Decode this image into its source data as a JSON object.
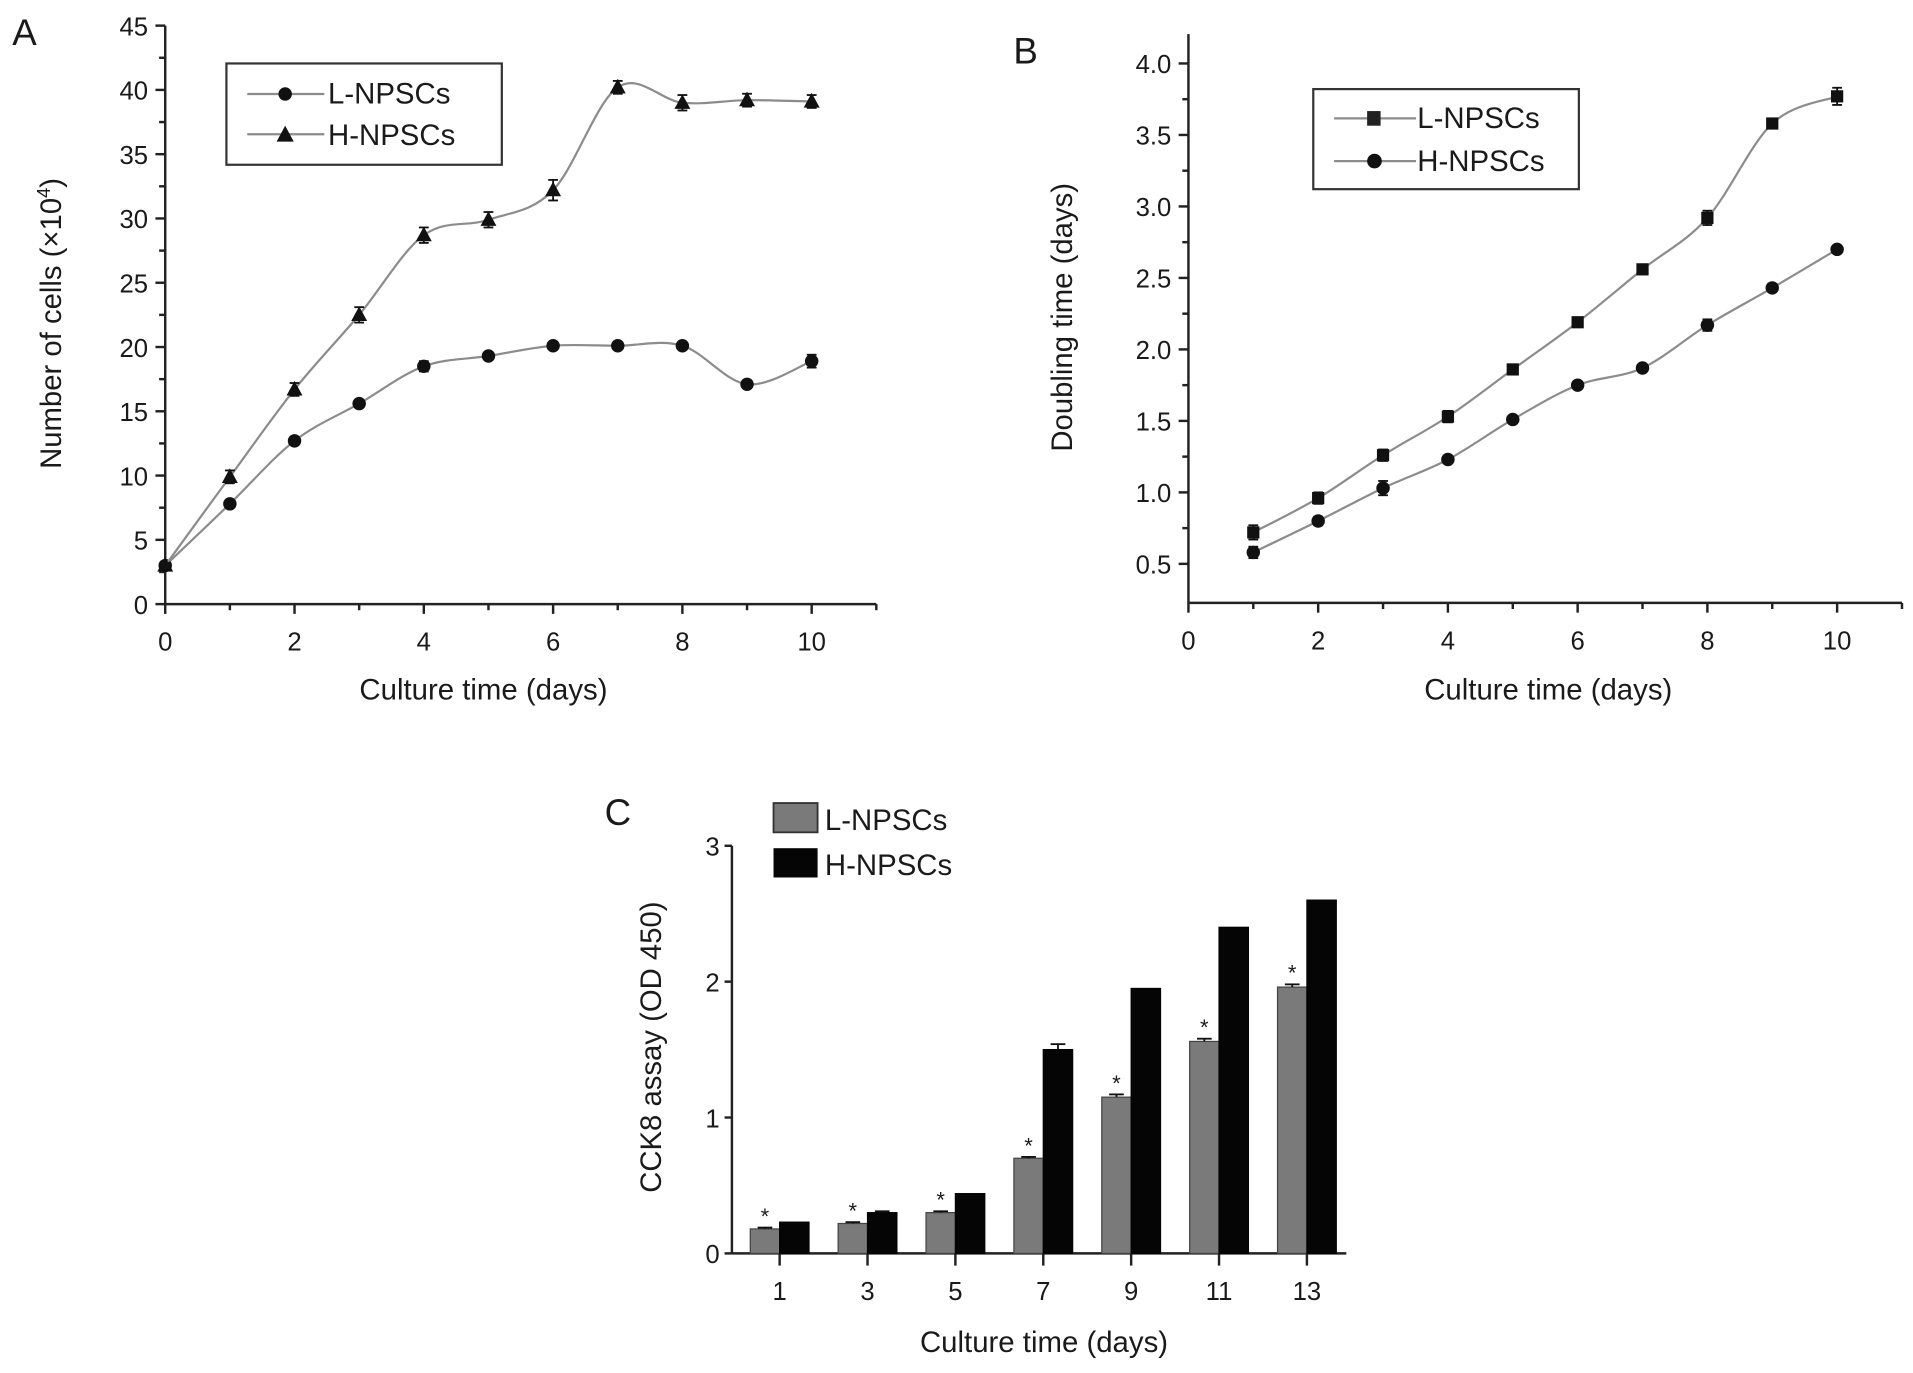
{
  "colors": {
    "line": "#8c8c8c",
    "marker": "#111111",
    "bar_l": "#7a7a7a",
    "bar_h": "#050505",
    "axis": "#222222"
  },
  "chart_data": [
    {
      "id": "A",
      "panel_label": "A",
      "type": "line",
      "xlabel": "Culture time (days)",
      "ylabel": "Number of cells (×10",
      "ylabel_sup": "4",
      "ylabel_close": ")",
      "xlim": [
        0,
        11
      ],
      "ylim": [
        0,
        45
      ],
      "xticks": [
        0,
        2,
        4,
        6,
        8,
        10
      ],
      "xtick_labels": [
        "0",
        "2",
        "4",
        "6",
        "8",
        "10"
      ],
      "yticks": [
        0,
        5,
        10,
        15,
        20,
        25,
        30,
        35,
        40,
        45
      ],
      "ytick_labels": [
        "0",
        "5",
        "10",
        "15",
        "20",
        "25",
        "30",
        "35",
        "40",
        "45"
      ],
      "legend_position": "top-left",
      "x": [
        0,
        1,
        2,
        3,
        4,
        5,
        6,
        7,
        8,
        9,
        10
      ],
      "series": [
        {
          "name": "L-NPSCs",
          "marker": "circle",
          "values": [
            3.0,
            7.8,
            12.7,
            15.6,
            18.5,
            19.3,
            20.1,
            20.1,
            20.1,
            17.1,
            18.9
          ],
          "errors": [
            0.2,
            0.2,
            0.3,
            0.2,
            0.4,
            0.2,
            0.2,
            0.2,
            0.2,
            0.2,
            0.5
          ]
        },
        {
          "name": "H-NPSCs",
          "marker": "triangle",
          "values": [
            3.0,
            9.9,
            16.7,
            22.5,
            28.7,
            29.9,
            32.2,
            40.2,
            39.0,
            39.2,
            39.1
          ],
          "errors": [
            0.2,
            0.5,
            0.5,
            0.6,
            0.6,
            0.6,
            0.8,
            0.5,
            0.6,
            0.5,
            0.5
          ]
        }
      ]
    },
    {
      "id": "B",
      "panel_label": "B",
      "type": "line",
      "xlabel": "Culture time (days)",
      "ylabel": "Doubling time (days)",
      "xlim": [
        0,
        11
      ],
      "ylim": [
        0.23,
        4.2
      ],
      "xticks": [
        0,
        2,
        4,
        6,
        8,
        10
      ],
      "xtick_labels": [
        "0",
        "2",
        "4",
        "6",
        "8",
        "10"
      ],
      "yticks": [
        0.5,
        1.0,
        1.5,
        2.0,
        2.5,
        3.0,
        3.5,
        4.0
      ],
      "ytick_labels": [
        "0.5",
        "1.0",
        "1.5",
        "2.0",
        "2.5",
        "3.0",
        "3.5",
        "4.0"
      ],
      "legend_position": "top-left",
      "x": [
        1,
        2,
        3,
        4,
        5,
        6,
        7,
        8,
        9,
        10
      ],
      "series": [
        {
          "name": "L-NPSCs",
          "marker": "square",
          "values": [
            0.72,
            0.96,
            1.26,
            1.53,
            1.86,
            2.19,
            2.56,
            2.92,
            3.58,
            3.77
          ],
          "errors": [
            0.05,
            0.04,
            0.04,
            0.04,
            0.02,
            0.02,
            0.02,
            0.05,
            0.02,
            0.06
          ]
        },
        {
          "name": "H-NPSCs",
          "marker": "circle",
          "values": [
            0.58,
            0.8,
            1.03,
            1.23,
            1.51,
            1.75,
            1.87,
            2.17,
            2.43,
            2.7
          ],
          "errors": [
            0.04,
            0.03,
            0.05,
            0.02,
            0.02,
            0.02,
            0.02,
            0.04,
            0.02,
            0.02
          ]
        }
      ]
    },
    {
      "id": "C",
      "panel_label": "C",
      "type": "bar",
      "xlabel": "Culture time (days)",
      "ylabel": "CCK8 assay (OD 450)",
      "categories": [
        "1",
        "3",
        "5",
        "7",
        "9",
        "11",
        "13"
      ],
      "ylim": [
        0,
        3
      ],
      "yticks": [
        0,
        1,
        2,
        3
      ],
      "ytick_labels": [
        "0",
        "1",
        "2",
        "3"
      ],
      "legend_position": "top-left",
      "significance_marker": "*",
      "series": [
        {
          "name": "L-NPSCs",
          "color": "#7a7a7a",
          "values": [
            0.18,
            0.22,
            0.3,
            0.7,
            1.15,
            1.56,
            1.96
          ],
          "errors": [
            0.01,
            0.01,
            0.01,
            0.01,
            0.02,
            0.02,
            0.02
          ],
          "significant": [
            true,
            true,
            true,
            true,
            true,
            true,
            true
          ]
        },
        {
          "name": "H-NPSCs",
          "color": "#050505",
          "values": [
            0.23,
            0.3,
            0.44,
            1.5,
            1.95,
            2.4,
            2.6
          ],
          "errors": [
            0.0,
            0.01,
            0.0,
            0.04,
            0.0,
            0.0,
            0.0
          ],
          "significant": [
            false,
            false,
            false,
            false,
            false,
            false,
            false
          ]
        }
      ]
    }
  ]
}
